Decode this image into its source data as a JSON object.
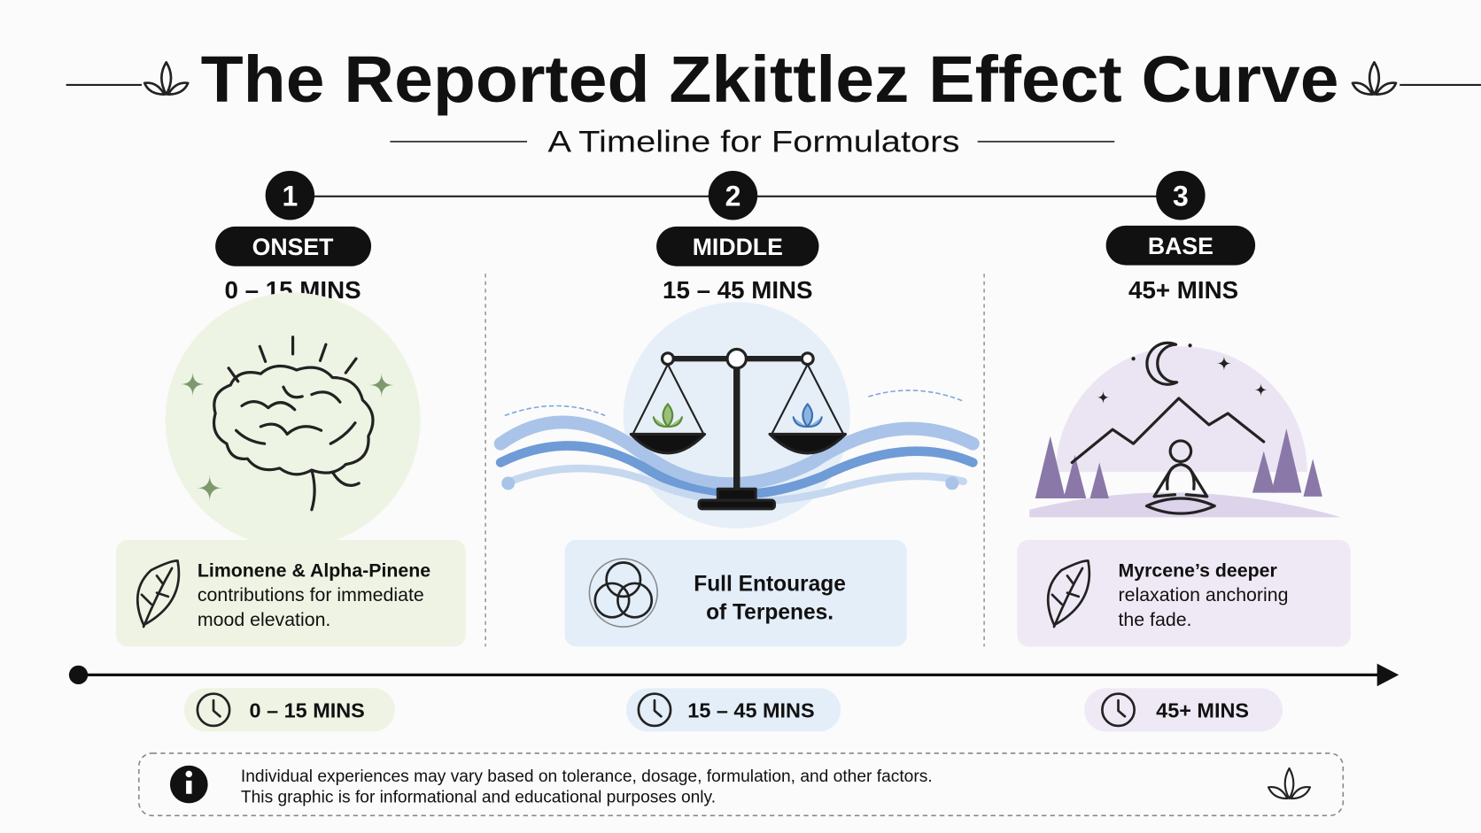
{
  "header": {
    "title": "The Reported Zkittlez Effect Curve",
    "subtitle": "A Timeline for Formulators"
  },
  "stages": [
    {
      "number": 1,
      "name": "ONSET",
      "time": "0 – 15 MINS",
      "description": [
        "Limonene & Alpha-Pinene",
        "contributions for immediate",
        "mood elevation."
      ],
      "timeline_label": "0 – 15 MINS"
    },
    {
      "number": 2,
      "name": "MIDDLE",
      "time": "15 – 45 MINS",
      "description": [
        "Full Entourage",
        "of Terpenes."
      ],
      "timeline_label": "15 – 45 MINS"
    },
    {
      "number": 3,
      "name": "BASE",
      "time": "45+ MINS",
      "description": [
        "Myrcene’s deeper",
        "relaxation anchoring",
        "the fade."
      ],
      "timeline_label": "45+ MINS"
    }
  ],
  "footer": {
    "lines": [
      "Individual experiences may vary based on tolerance, dosage, formulation, and other factors.",
      "This graphic is for informational and educational purposes only."
    ]
  }
}
